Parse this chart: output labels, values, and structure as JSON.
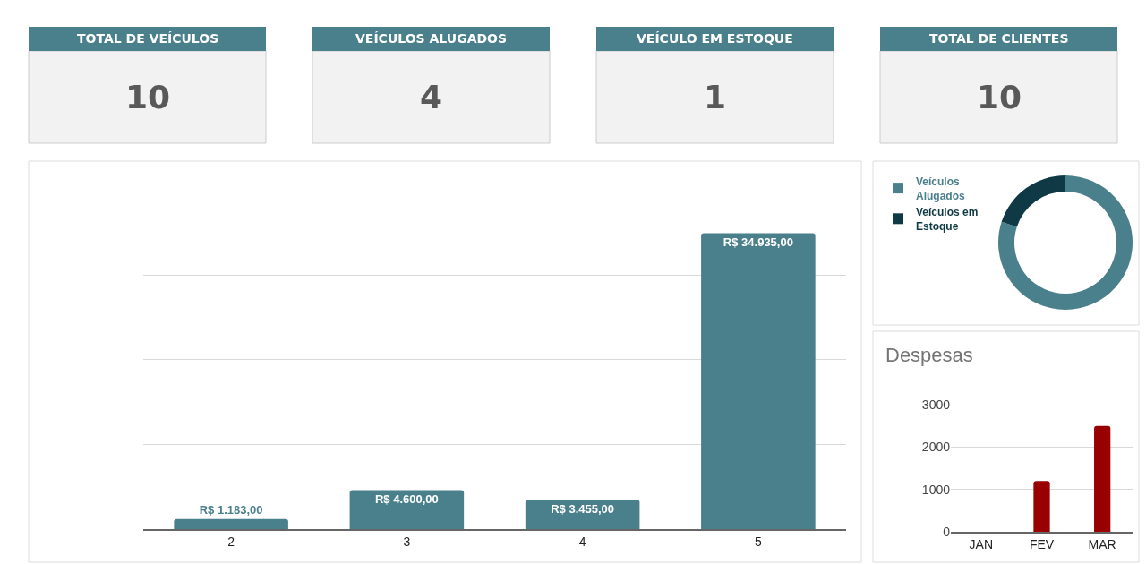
{
  "chart_data": [
    {
      "type": "other",
      "title": "TOTAL DE VEÍCULOS",
      "annotations": [
        "10"
      ],
      "color": "#4a7f8c"
    },
    {
      "type": "other",
      "title": "VEÍCULOS ALUGADOS",
      "annotations": [
        "4"
      ],
      "color": "#4a7f8c"
    },
    {
      "type": "other",
      "title": "VEÍCULO EM ESTOQUE",
      "annotations": [
        "1"
      ],
      "color": "#4a7f8c"
    },
    {
      "type": "other",
      "title": "TOTAL DE CLIENTES",
      "annotations": [
        "10"
      ],
      "color": "#4a7f8c"
    },
    {
      "type": "bar",
      "categories": [
        "2",
        "3",
        "4",
        "5"
      ],
      "values": [
        1183,
        4600,
        3455,
        34935
      ],
      "value_labels": [
        "R$ 1.183,00",
        "R$ 4.600,00",
        "R$ 3.455,00",
        "R$ 34.935,00"
      ],
      "color": "#4a7f8c",
      "grid": "y",
      "tick_labels": "x"
    },
    {
      "type": "donut",
      "categories": [
        "Veículos Alugados",
        "Veículos em Estoque"
      ],
      "values": [
        80,
        20
      ],
      "colors": [
        "#4a7f8c",
        "#0f3a45"
      ],
      "legend": "top left"
    },
    {
      "type": "bar",
      "title": "Despesas",
      "categories": [
        "JAN",
        "FEV",
        "MAR"
      ],
      "values": [
        null,
        1200,
        2500
      ],
      "color": "#990000",
      "ylim": [
        0,
        3000
      ],
      "yticks": [
        0,
        1000,
        2000,
        3000
      ],
      "grid": "y"
    }
  ]
}
